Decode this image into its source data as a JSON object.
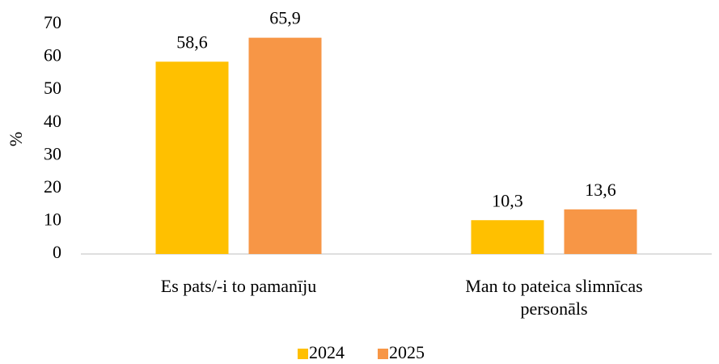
{
  "chart_data": {
    "type": "bar",
    "categories": [
      "Es pats/-i to pamanīju",
      "Man to pateica slimnīcas personāls"
    ],
    "series": [
      {
        "name": "2024",
        "color": "#ffc000",
        "values": [
          58.6,
          10.3
        ],
        "value_labels": [
          "58,6",
          "10,3"
        ]
      },
      {
        "name": "2025",
        "color": "#f79646",
        "values": [
          65.9,
          13.6
        ],
        "value_labels": [
          "65,9",
          "13,6"
        ]
      }
    ],
    "ylabel": "%",
    "ylim": [
      0,
      70
    ],
    "yticks": [
      0,
      10,
      20,
      30,
      40,
      50,
      60,
      70
    ],
    "grid": false,
    "legend": "bottom"
  }
}
